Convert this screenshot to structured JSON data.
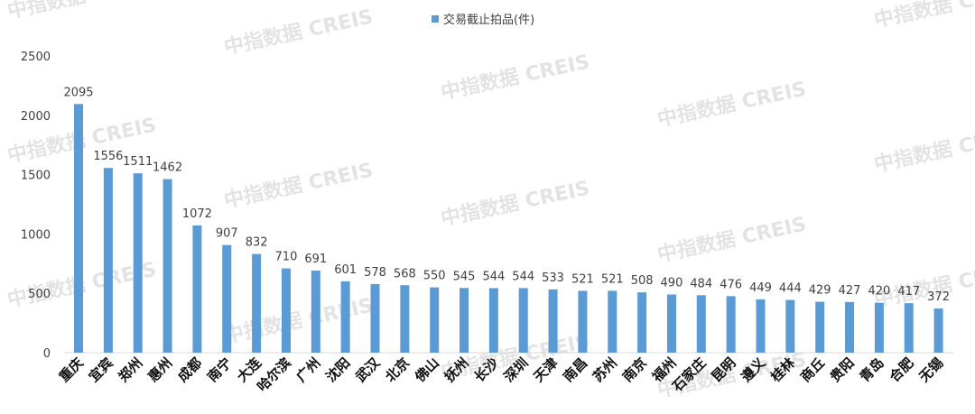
{
  "chart_data": {
    "type": "bar",
    "watermark": "中指数据 CREIS",
    "categories": [
      "重庆",
      "宜宾",
      "郑州",
      "惠州",
      "成都",
      "南宁",
      "大连",
      "哈尔滨",
      "广州",
      "沈阳",
      "武汉",
      "北京",
      "佛山",
      "抚州",
      "长沙",
      "深圳",
      "天津",
      "南昌",
      "苏州",
      "南京",
      "福州",
      "石家庄",
      "昆明",
      "遵义",
      "桂林",
      "商丘",
      "贵阳",
      "青岛",
      "合肥",
      "无锡"
    ],
    "series": [
      {
        "name": "交易截止拍品(件)",
        "color": "#5b9bd5",
        "values": [
          2095,
          1556,
          1511,
          1462,
          1072,
          907,
          832,
          710,
          691,
          601,
          578,
          568,
          550,
          545,
          544,
          544,
          533,
          521,
          521,
          508,
          490,
          484,
          476,
          449,
          444,
          429,
          427,
          420,
          417,
          372
        ]
      }
    ],
    "ylim": [
      0,
      2500
    ],
    "yticks": [
      0,
      500,
      1000,
      1500,
      2000,
      2500
    ],
    "grid": false,
    "legend": "top"
  }
}
